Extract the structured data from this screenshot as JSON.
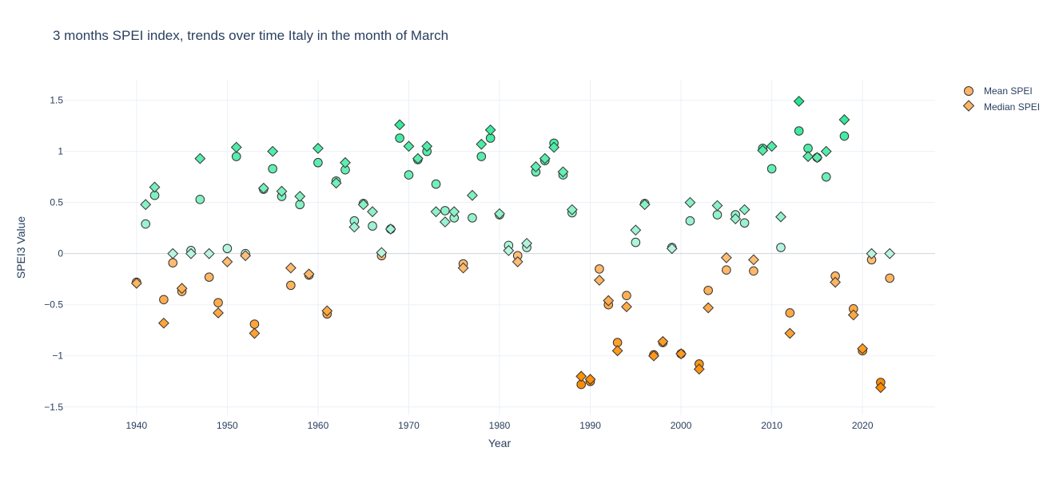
{
  "chart_data": {
    "type": "scatter",
    "title": "3 months SPEI index, trends over time Italy in the month of March",
    "xlabel": "Year",
    "ylabel": "SPEI3 Value",
    "xlim": [
      1932,
      2028
    ],
    "ylim": [
      -1.58,
      1.7
    ],
    "xticks": [
      1940,
      1950,
      1960,
      1970,
      1980,
      1990,
      2000,
      2010,
      2020
    ],
    "yticks": [
      -1.5,
      -1,
      -0.5,
      0,
      0.5,
      1,
      1.5
    ],
    "ytick_labels": [
      "−1.5",
      "−1",
      "−0.5",
      "0",
      "0.5",
      "1",
      "1.5"
    ],
    "grid": true,
    "legend_position": "top-right",
    "color_scale": {
      "negative_low": "#ff8c00",
      "negative_high": "#ffbf7a",
      "positive_low": "#b8f5e0",
      "positive_high": "#20e890"
    },
    "series": [
      {
        "name": "Mean SPEI",
        "marker": "circle",
        "legend_color": "#ffb566",
        "points": [
          [
            1940,
            -0.28
          ],
          [
            1941,
            0.29
          ],
          [
            1942,
            0.57
          ],
          [
            1943,
            -0.45
          ],
          [
            1944,
            -0.09
          ],
          [
            1945,
            -0.37
          ],
          [
            1946,
            0.03
          ],
          [
            1947,
            0.53
          ],
          [
            1948,
            -0.23
          ],
          [
            1949,
            -0.48
          ],
          [
            1950,
            0.05
          ],
          [
            1951,
            0.95
          ],
          [
            1952,
            0.0
          ],
          [
            1953,
            -0.69
          ],
          [
            1954,
            0.63
          ],
          [
            1955,
            0.83
          ],
          [
            1956,
            0.56
          ],
          [
            1957,
            -0.31
          ],
          [
            1958,
            0.48
          ],
          [
            1959,
            -0.21
          ],
          [
            1960,
            0.89
          ],
          [
            1961,
            -0.59
          ],
          [
            1962,
            0.71
          ],
          [
            1963,
            0.82
          ],
          [
            1964,
            0.32
          ],
          [
            1965,
            0.49
          ],
          [
            1966,
            0.27
          ],
          [
            1967,
            -0.02
          ],
          [
            1968,
            0.24
          ],
          [
            1969,
            1.13
          ],
          [
            1970,
            0.77
          ],
          [
            1971,
            0.92
          ],
          [
            1972,
            1.0
          ],
          [
            1973,
            0.68
          ],
          [
            1974,
            0.42
          ],
          [
            1975,
            0.35
          ],
          [
            1976,
            -0.1
          ],
          [
            1977,
            0.35
          ],
          [
            1978,
            0.95
          ],
          [
            1979,
            1.13
          ],
          [
            1980,
            0.38
          ],
          [
            1981,
            0.08
          ],
          [
            1982,
            -0.02
          ],
          [
            1983,
            0.06
          ],
          [
            1984,
            0.8
          ],
          [
            1985,
            0.91
          ],
          [
            1986,
            1.08
          ],
          [
            1987,
            0.77
          ],
          [
            1988,
            0.4
          ],
          [
            1989,
            -1.28
          ],
          [
            1990,
            -1.25
          ],
          [
            1991,
            -0.15
          ],
          [
            1992,
            -0.5
          ],
          [
            1993,
            -0.87
          ],
          [
            1994,
            -0.41
          ],
          [
            1995,
            0.11
          ],
          [
            1996,
            0.49
          ],
          [
            1997,
            -0.99
          ],
          [
            1998,
            -0.87
          ],
          [
            1999,
            0.06
          ],
          [
            2000,
            -0.98
          ],
          [
            2001,
            0.32
          ],
          [
            2002,
            -1.08
          ],
          [
            2003,
            -0.36
          ],
          [
            2004,
            0.38
          ],
          [
            2005,
            -0.16
          ],
          [
            2006,
            0.38
          ],
          [
            2007,
            0.3
          ],
          [
            2008,
            -0.17
          ],
          [
            2009,
            1.03
          ],
          [
            2010,
            0.83
          ],
          [
            2011,
            0.06
          ],
          [
            2012,
            -0.58
          ],
          [
            2013,
            1.2
          ],
          [
            2014,
            1.03
          ],
          [
            2015,
            0.94
          ],
          [
            2016,
            0.75
          ],
          [
            2017,
            -0.22
          ],
          [
            2018,
            1.15
          ],
          [
            2019,
            -0.54
          ],
          [
            2020,
            -0.95
          ],
          [
            2021,
            -0.06
          ],
          [
            2022,
            -1.26
          ],
          [
            2023,
            -0.24
          ]
        ]
      },
      {
        "name": "Median SPEI",
        "marker": "diamond",
        "legend_color": "#ffb566",
        "points": [
          [
            1940,
            -0.29
          ],
          [
            1941,
            0.48
          ],
          [
            1942,
            0.65
          ],
          [
            1943,
            -0.68
          ],
          [
            1944,
            0.0
          ],
          [
            1945,
            -0.34
          ],
          [
            1946,
            0.0
          ],
          [
            1947,
            0.93
          ],
          [
            1948,
            0.0
          ],
          [
            1949,
            -0.58
          ],
          [
            1950,
            -0.08
          ],
          [
            1951,
            1.04
          ],
          [
            1952,
            -0.02
          ],
          [
            1953,
            -0.78
          ],
          [
            1954,
            0.64
          ],
          [
            1955,
            1.0
          ],
          [
            1956,
            0.61
          ],
          [
            1957,
            -0.14
          ],
          [
            1958,
            0.56
          ],
          [
            1959,
            -0.2
          ],
          [
            1960,
            1.03
          ],
          [
            1961,
            -0.56
          ],
          [
            1962,
            0.69
          ],
          [
            1963,
            0.89
          ],
          [
            1964,
            0.26
          ],
          [
            1965,
            0.48
          ],
          [
            1966,
            0.41
          ],
          [
            1967,
            0.01
          ],
          [
            1968,
            0.24
          ],
          [
            1969,
            1.26
          ],
          [
            1970,
            1.05
          ],
          [
            1971,
            0.93
          ],
          [
            1972,
            1.05
          ],
          [
            1973,
            0.41
          ],
          [
            1974,
            0.31
          ],
          [
            1975,
            0.41
          ],
          [
            1976,
            -0.14
          ],
          [
            1977,
            0.57
          ],
          [
            1978,
            1.07
          ],
          [
            1979,
            1.21
          ],
          [
            1980,
            0.39
          ],
          [
            1981,
            0.03
          ],
          [
            1982,
            -0.08
          ],
          [
            1983,
            0.1
          ],
          [
            1984,
            0.85
          ],
          [
            1985,
            0.93
          ],
          [
            1986,
            1.04
          ],
          [
            1987,
            0.8
          ],
          [
            1988,
            0.43
          ],
          [
            1989,
            -1.2
          ],
          [
            1990,
            -1.23
          ],
          [
            1991,
            -0.26
          ],
          [
            1992,
            -0.46
          ],
          [
            1993,
            -0.95
          ],
          [
            1994,
            -0.52
          ],
          [
            1995,
            0.23
          ],
          [
            1996,
            0.48
          ],
          [
            1997,
            -1.0
          ],
          [
            1998,
            -0.86
          ],
          [
            1999,
            0.05
          ],
          [
            2000,
            -0.98
          ],
          [
            2001,
            0.5
          ],
          [
            2002,
            -1.13
          ],
          [
            2003,
            -0.53
          ],
          [
            2004,
            0.47
          ],
          [
            2005,
            -0.04
          ],
          [
            2006,
            0.34
          ],
          [
            2007,
            0.43
          ],
          [
            2008,
            -0.06
          ],
          [
            2009,
            1.01
          ],
          [
            2010,
            1.05
          ],
          [
            2011,
            0.36
          ],
          [
            2012,
            -0.78
          ],
          [
            2013,
            1.49
          ],
          [
            2014,
            0.95
          ],
          [
            2015,
            0.94
          ],
          [
            2016,
            1.0
          ],
          [
            2017,
            -0.28
          ],
          [
            2018,
            1.31
          ],
          [
            2019,
            -0.6
          ],
          [
            2020,
            -0.93
          ],
          [
            2021,
            0.0
          ],
          [
            2022,
            -1.31
          ],
          [
            2023,
            0.0
          ]
        ]
      }
    ]
  }
}
